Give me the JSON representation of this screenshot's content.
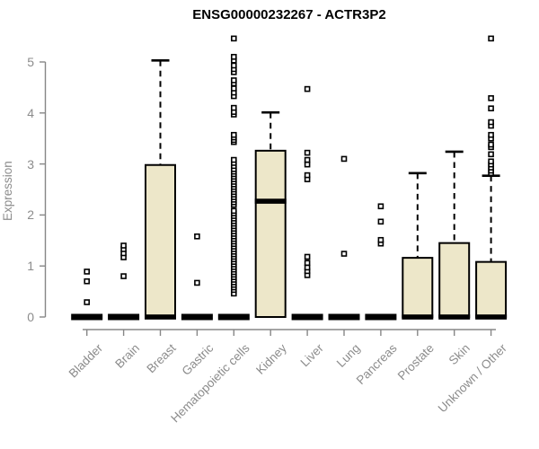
{
  "title": "ENSG00000232267 - ACTR3P2",
  "y_axis_label": "Expression",
  "colors": {
    "box_fill": "#EDE7C9",
    "box_stroke": "#000000",
    "median_color": "#000000",
    "outlier_stroke": "#000000",
    "axis_color": "#878787",
    "tick_label_color": "#8C8C8C",
    "title_color": "#000000",
    "background": "#FFFFFF"
  },
  "chart_data": {
    "type": "boxplot",
    "title": "ENSG00000232267 - ACTR3P2",
    "xlabel": "",
    "ylabel": "Expression",
    "ylim": [
      0,
      5.6
    ],
    "yticks": [
      0,
      1,
      2,
      3,
      4,
      5
    ],
    "grid": false,
    "legend": "none",
    "categories": [
      "Bladder",
      "Brain",
      "Breast",
      "Gastric",
      "Hematopoietic cells",
      "Kidney",
      "Liver",
      "Lung",
      "Pancreas",
      "Prostate",
      "Skin",
      "Unknown / Other"
    ],
    "series": [
      {
        "category": "Bladder",
        "q1": 0,
        "median": 0,
        "q3": 0,
        "whisker_low": 0,
        "whisker_high": 0,
        "outliers": [
          0.29,
          0.7,
          0.89
        ]
      },
      {
        "category": "Brain",
        "q1": 0,
        "median": 0,
        "q3": 0,
        "whisker_low": 0,
        "whisker_high": 0,
        "outliers": [
          0.8,
          1.17,
          1.25,
          1.33,
          1.4
        ]
      },
      {
        "category": "Breast",
        "q1": 0,
        "median": 0,
        "q3": 2.98,
        "whisker_low": 0,
        "whisker_high": 5.03,
        "outliers": []
      },
      {
        "category": "Gastric",
        "q1": 0,
        "median": 0,
        "q3": 0,
        "whisker_low": 0,
        "whisker_high": 0,
        "outliers": [
          0.67,
          1.58
        ]
      },
      {
        "category": "Hematopoietic cells",
        "q1": 0,
        "median": 0,
        "q3": 0,
        "whisker_low": 0,
        "whisker_high": 0,
        "outliers": [
          0.46,
          0.53,
          0.58,
          0.63,
          0.68,
          0.73,
          0.78,
          0.83,
          0.88,
          0.93,
          0.98,
          1.03,
          1.08,
          1.13,
          1.18,
          1.23,
          1.28,
          1.33,
          1.38,
          1.43,
          1.48,
          1.53,
          1.58,
          1.63,
          1.68,
          1.73,
          1.78,
          1.83,
          1.88,
          1.93,
          1.98,
          2.03,
          2.08,
          2.2,
          2.25,
          2.3,
          2.35,
          2.4,
          2.45,
          2.5,
          2.55,
          2.6,
          2.65,
          2.7,
          2.75,
          2.8,
          2.85,
          2.9,
          2.96,
          3.02,
          3.08,
          3.43,
          3.47,
          3.52,
          3.57,
          3.97,
          4.02,
          4.1,
          4.33,
          4.4,
          4.48,
          4.58,
          4.64,
          4.8,
          4.86,
          4.93,
          5.03,
          5.1,
          5.46
        ]
      },
      {
        "category": "Kidney",
        "q1": 0,
        "median": 2.27,
        "q3": 3.26,
        "whisker_low": 0,
        "whisker_high": 4.01,
        "outliers": []
      },
      {
        "category": "Liver",
        "q1": 0,
        "median": 0,
        "q3": 0,
        "whisker_low": 0,
        "whisker_high": 0,
        "outliers": [
          0.82,
          0.9,
          0.97,
          1.06,
          1.18,
          2.7,
          2.78,
          2.99,
          3.08,
          3.22,
          4.47
        ]
      },
      {
        "category": "Lung",
        "q1": 0,
        "median": 0,
        "q3": 0,
        "whisker_low": 0,
        "whisker_high": 0,
        "outliers": [
          1.24,
          3.1
        ]
      },
      {
        "category": "Pancreas",
        "q1": 0,
        "median": 0,
        "q3": 0,
        "whisker_low": 0,
        "whisker_high": 0,
        "outliers": [
          1.44,
          1.51,
          1.87,
          2.17
        ]
      },
      {
        "category": "Prostate",
        "q1": 0,
        "median": 0,
        "q3": 1.16,
        "whisker_low": 0,
        "whisker_high": 2.82,
        "outliers": []
      },
      {
        "category": "Skin",
        "q1": 0,
        "median": 0,
        "q3": 1.45,
        "whisker_low": 0,
        "whisker_high": 3.24,
        "outliers": []
      },
      {
        "category": "Unknown / Other",
        "q1": 0,
        "median": 0,
        "q3": 1.08,
        "whisker_low": 0,
        "whisker_high": 2.77,
        "outliers": [
          2.82,
          2.87,
          2.93,
          2.99,
          3.05,
          3.19,
          3.33,
          3.38,
          3.5,
          3.57,
          3.75,
          3.82,
          4.09,
          4.29,
          5.46
        ]
      }
    ]
  }
}
